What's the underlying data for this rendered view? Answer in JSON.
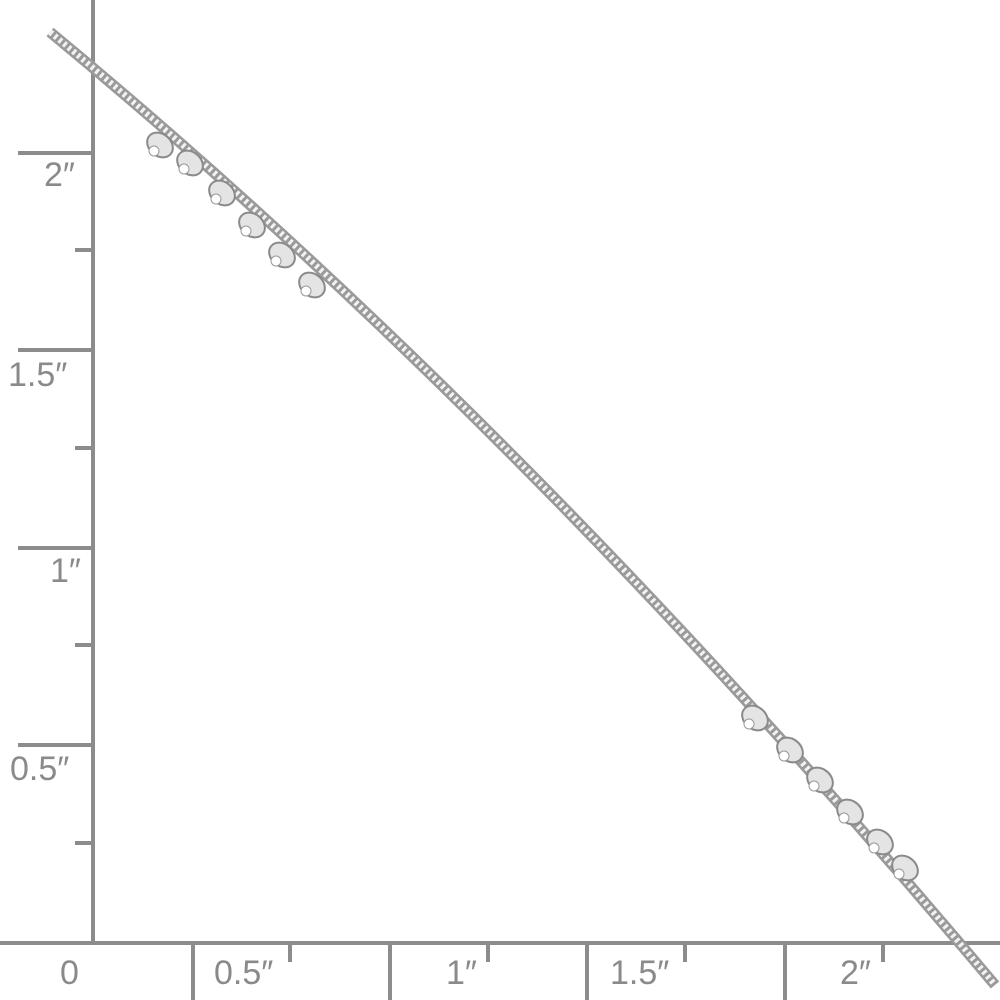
{
  "ruler": {
    "unit_color": "#8c8c8c",
    "vertical_labels": [
      "2″",
      "1.5″",
      "1″",
      "0.5″"
    ],
    "horizontal_labels": [
      "0",
      "0.5″",
      "1″",
      "1.5″",
      "2″"
    ]
  },
  "subject": {
    "description_icon": "silver-beaded-snake-chain",
    "metal_color": "#d8d8d8"
  }
}
